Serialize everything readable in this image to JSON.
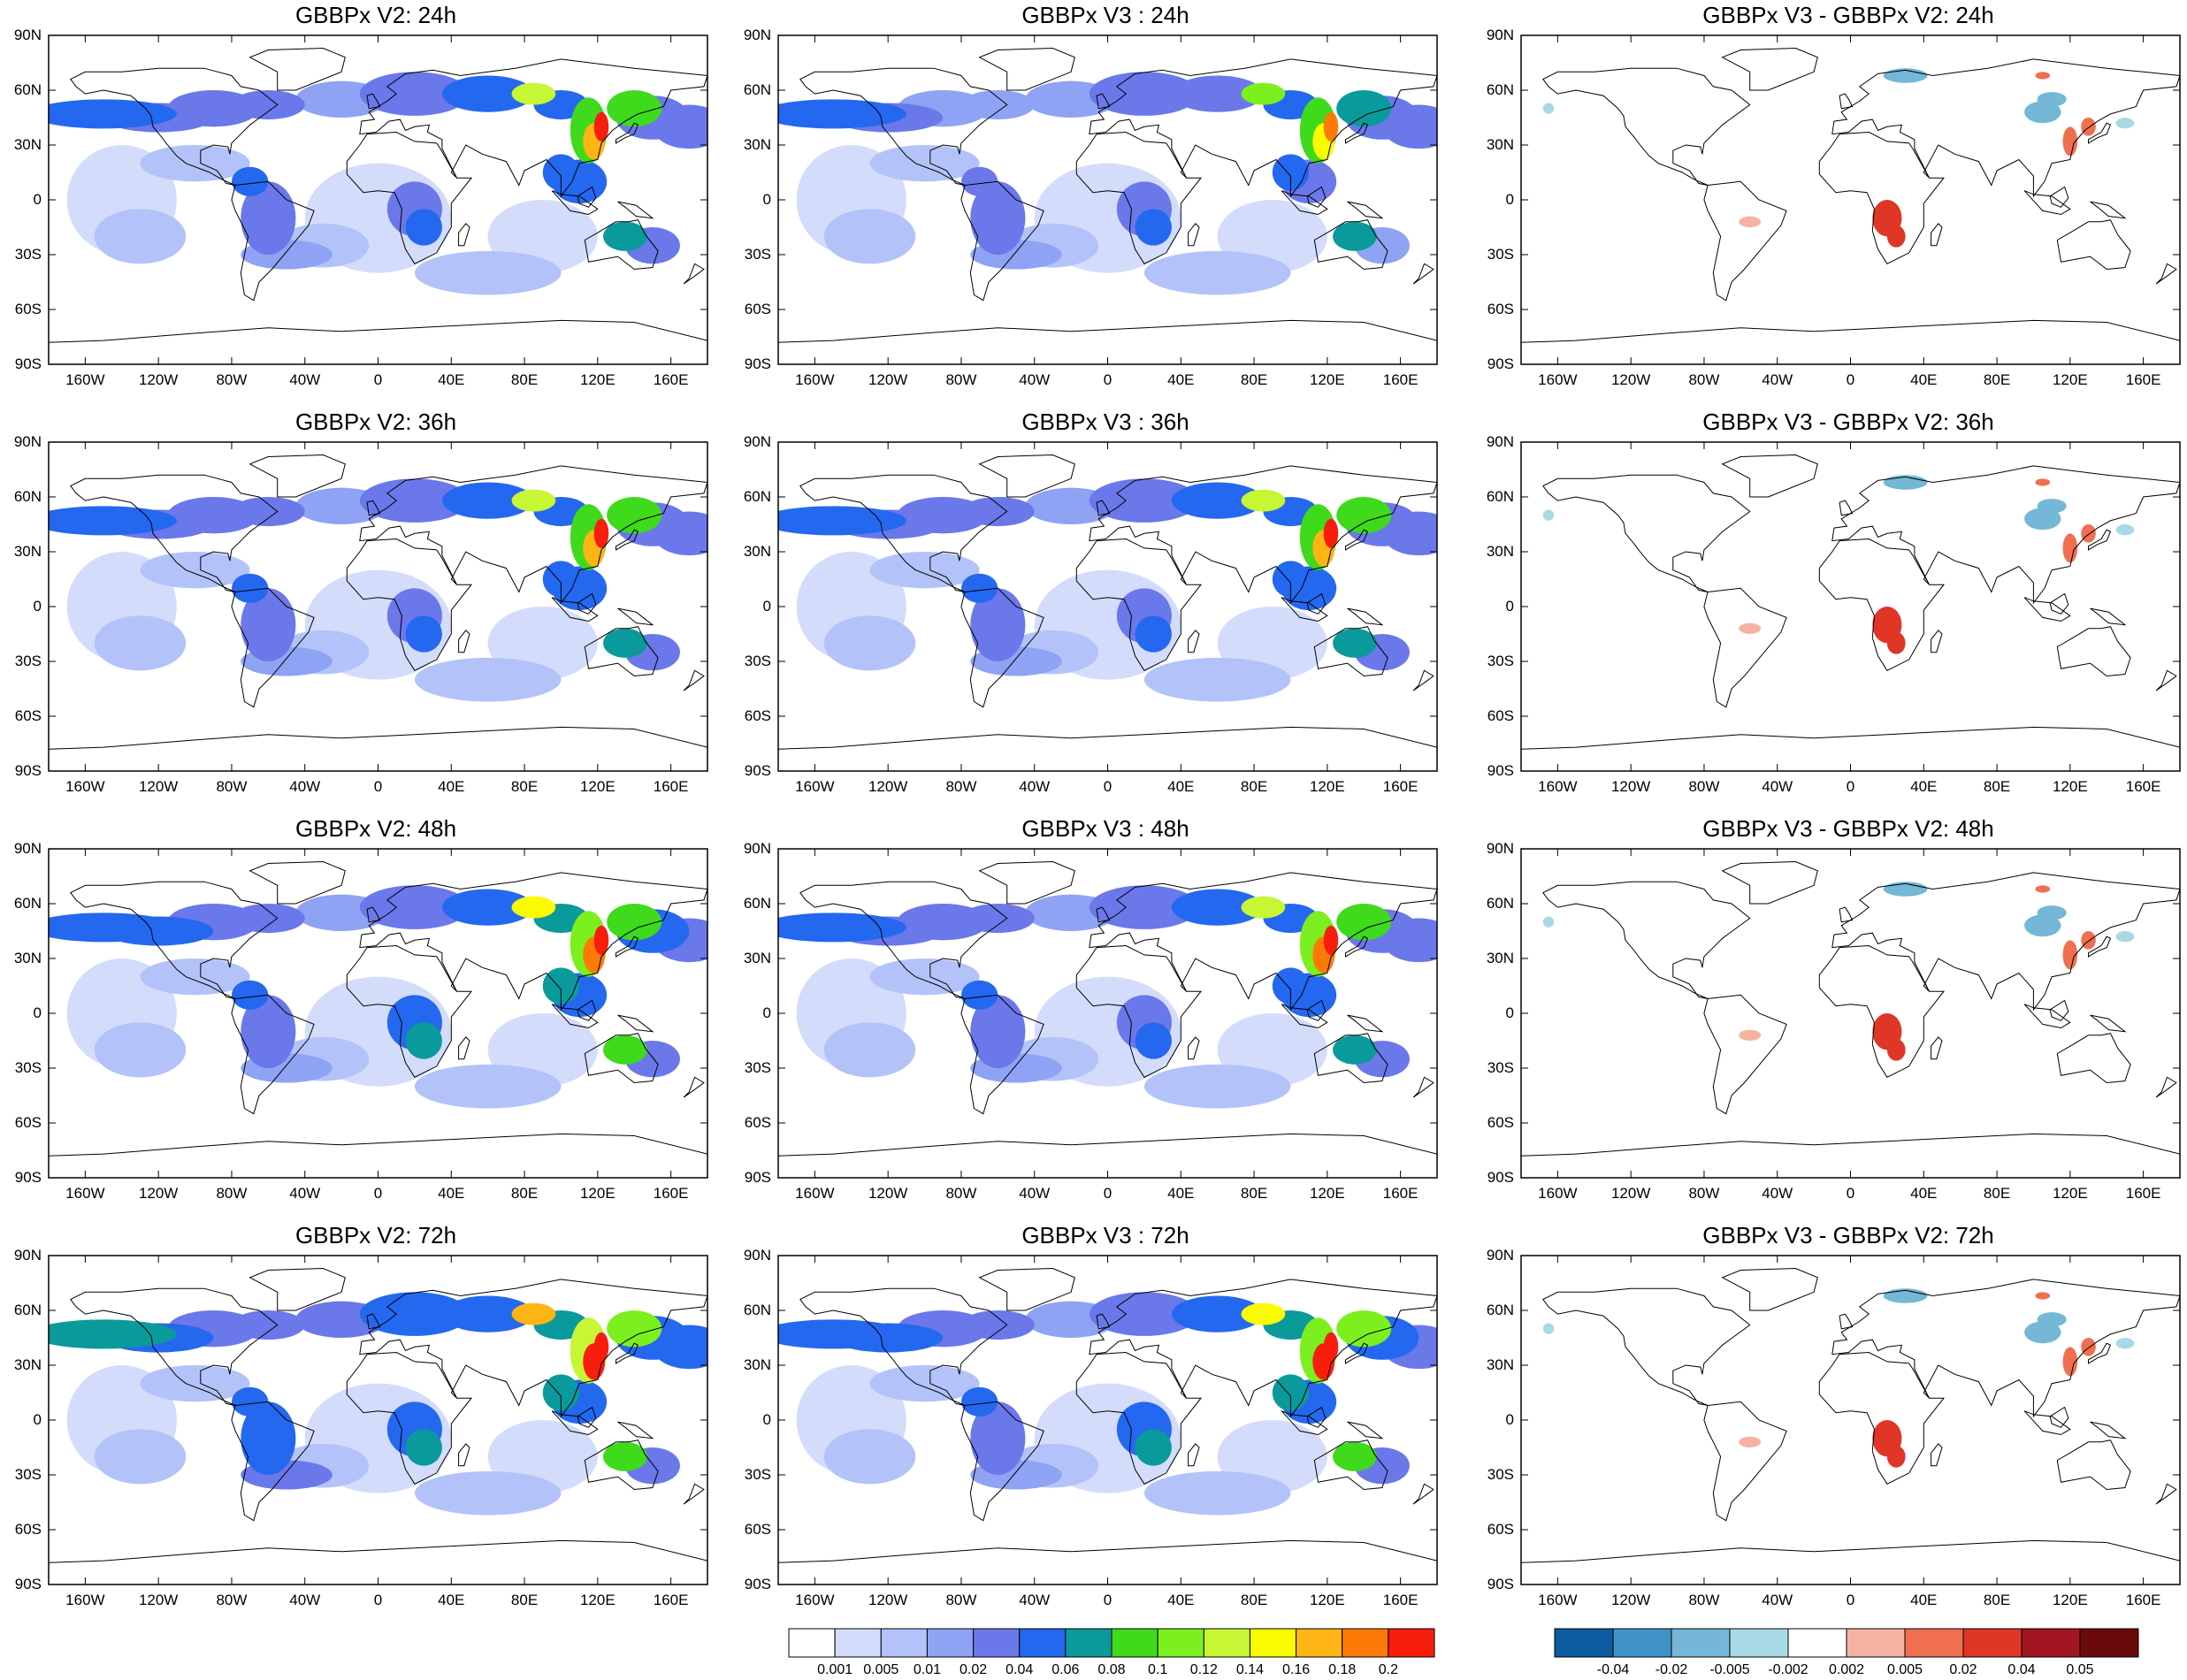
{
  "figure": {
    "rows": [
      {
        "titles": [
          "GBBPx V2: 24h",
          "GBBPx V3 : 24h",
          "GBBPx V3 - GBBPx V2: 24h"
        ],
        "value_intensity": 1.0
      },
      {
        "titles": [
          "GBBPx V2: 36h",
          "GBBPx V3 : 36h",
          "GBBPx V3 - GBBPx V2: 36h"
        ],
        "value_intensity": 1.1
      },
      {
        "titles": [
          "GBBPx V2: 48h",
          "GBBPx V3 : 48h",
          "GBBPx V3 - GBBPx V2: 48h"
        ],
        "value_intensity": 1.2
      },
      {
        "titles": [
          "GBBPx V2: 72h",
          "GBBPx V3 : 72h",
          "GBBPx V3 - GBBPx V2: 72h"
        ],
        "value_intensity": 1.35
      }
    ],
    "lat_labels": [
      "90N",
      "60N",
      "30N",
      "0",
      "30S",
      "60S",
      "90S"
    ],
    "lon_labels": [
      "160W",
      "120W",
      "80W",
      "40W",
      "0",
      "40E",
      "80E",
      "120E",
      "160E"
    ],
    "lon_values": [
      -160,
      -120,
      -80,
      -40,
      0,
      40,
      80,
      120,
      160
    ],
    "map_extent": {
      "lon": [
        -180,
        180
      ],
      "lat": [
        -90,
        90
      ]
    }
  },
  "colorbars": {
    "value": {
      "labels": [
        "0.001",
        "0.005",
        "0.01",
        "0.02",
        "0.04",
        "0.06",
        "0.08",
        "0.1",
        "0.12",
        "0.14",
        "0.16",
        "0.18",
        "0.2"
      ],
      "colors": [
        "#ffffff",
        "#d3dcfb",
        "#b3c3f9",
        "#8fa3f4",
        "#6a78ea",
        "#2468f0",
        "#0a9a9c",
        "#3fda1c",
        "#7cf01e",
        "#c6f634",
        "#fafa00",
        "#fdb414",
        "#fd7a08",
        "#f81e0e"
      ]
    },
    "diff": {
      "labels": [
        "-0.04",
        "-0.02",
        "-0.005",
        "-0.002",
        "0.002",
        "0.005",
        "0.02",
        "0.04",
        "0.05"
      ],
      "colors": [
        "#0c5aa0",
        "#4093c7",
        "#74b7d6",
        "#a8dae5",
        "#ffffff",
        "#f6b3a2",
        "#ef6f50",
        "#df3626",
        "#a11620",
        "#6b0a0a"
      ]
    }
  },
  "colors": {
    "coastline": "#000000",
    "frame": "#000000"
  }
}
